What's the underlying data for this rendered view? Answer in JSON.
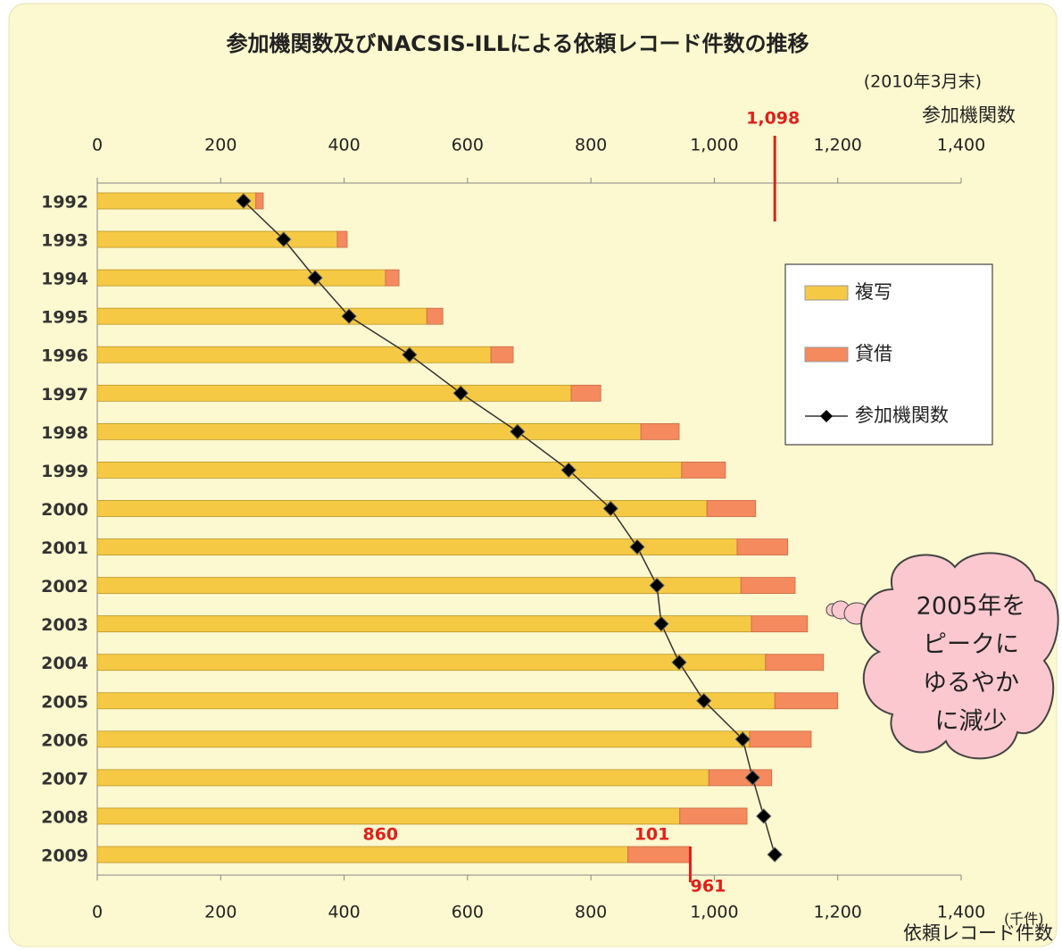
{
  "chart_data": {
    "type": "bar",
    "orientation": "horizontal",
    "stacked": true,
    "title": "参加機関数及びNACSIS-ILLによる依頼レコード件数の推移",
    "subtitle": "(2010年3月末)",
    "xlabel": "依頼レコード件数",
    "xunit": "(千件)",
    "x2label": "参加機関数",
    "categories": [
      "1992",
      "1993",
      "1994",
      "1995",
      "1996",
      "1997",
      "1998",
      "1999",
      "2000",
      "2001",
      "2002",
      "2003",
      "2004",
      "2005",
      "2006",
      "2007",
      "2008",
      "2009"
    ],
    "series": [
      {
        "name": "複写",
        "color": "#f6c945",
        "values": [
          257,
          389,
          467,
          534,
          638,
          768,
          881,
          947,
          988,
          1037,
          1043,
          1060,
          1083,
          1098,
          1057,
          991,
          944,
          860
        ]
      },
      {
        "name": "貸借",
        "color": "#f48a5e",
        "values": [
          12,
          16,
          22,
          26,
          36,
          48,
          62,
          71,
          79,
          82,
          88,
          91,
          94,
          102,
          100,
          102,
          109,
          101
        ]
      },
      {
        "name": "参加機関数",
        "color": "#000000",
        "axis": "x2",
        "values": [
          237,
          302,
          353,
          408,
          506,
          589,
          681,
          764,
          832,
          875,
          907,
          914,
          943,
          983,
          1046,
          1062,
          1080,
          1098
        ]
      }
    ],
    "xlim": [
      0,
      1400
    ],
    "xticks": [
      0,
      200,
      400,
      600,
      800,
      {
        "value": 1000,
        "label": "1,000"
      },
      {
        "value": 1200,
        "label": "1,200"
      },
      {
        "value": 1400,
        "label": "1,400"
      }
    ],
    "x2lim": [
      0,
      1400
    ],
    "x2ticks": [
      0,
      200,
      400,
      600,
      800,
      {
        "value": 1000,
        "label": "1,000"
      },
      {
        "value": 1200,
        "label": "1,200"
      },
      {
        "value": 1400,
        "label": "1,400"
      }
    ],
    "annotations": [
      {
        "text": "1,098",
        "value": 1098,
        "axis": "x2"
      },
      {
        "text": "961",
        "value": 961,
        "axis": "x"
      }
    ],
    "callout": [
      "2005年を",
      "ピークに",
      "ゆるやか",
      "に減少"
    ],
    "legend_position": "right"
  }
}
